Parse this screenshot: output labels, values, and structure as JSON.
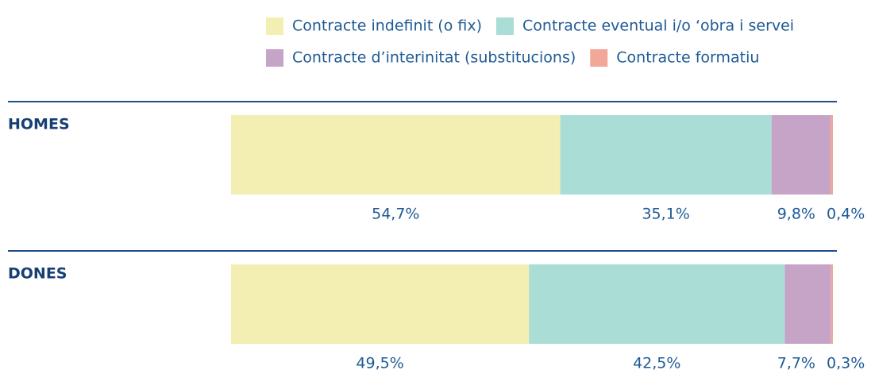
{
  "chart_data": {
    "type": "stacked-bar-horizontal",
    "categories": [
      "HOMES",
      "DONES"
    ],
    "series": [
      {
        "name": "Contracte indefinit (o fix)",
        "color": "#f3eeb1",
        "values": [
          54.7,
          49.5
        ],
        "value_labels": [
          "54,7%",
          "49,5%"
        ]
      },
      {
        "name": "Contracte eventual i/o ‘obra i servei",
        "color": "#a9ddd5",
        "values": [
          35.1,
          42.5
        ],
        "value_labels": [
          "35,1%",
          "42,5%"
        ]
      },
      {
        "name": "Contracte d’interinitat (substitucions)",
        "color": "#c6a4c8",
        "values": [
          9.8,
          7.7
        ],
        "value_labels": [
          "9,8%",
          "7,7%"
        ]
      },
      {
        "name": "Contracte formatiu",
        "color": "#f2a898",
        "values": [
          0.4,
          0.3
        ],
        "value_labels": [
          "0,4%",
          "0,3%"
        ]
      }
    ],
    "xlim": [
      0,
      100
    ],
    "legend": "top"
  }
}
